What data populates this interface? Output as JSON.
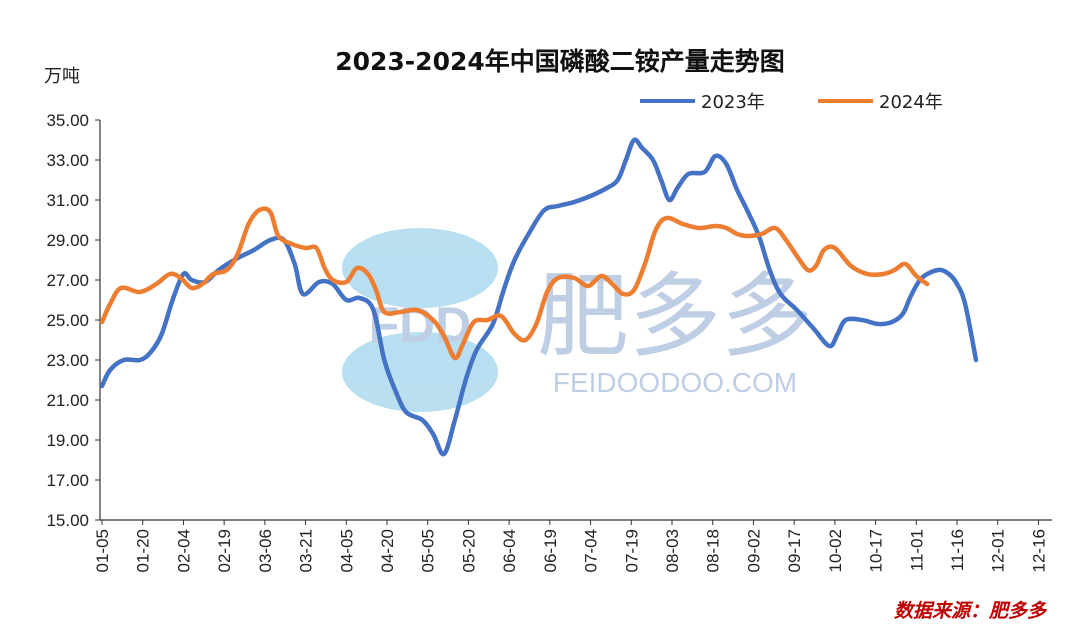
{
  "chart_data": {
    "type": "line",
    "title": "2023-2024年中国磷酸二铵产量走势图",
    "ylabel": "万吨",
    "ylim": [
      15,
      35
    ],
    "yticks": [
      "15.00",
      "17.00",
      "19.00",
      "21.00",
      "23.00",
      "25.00",
      "27.00",
      "29.00",
      "31.00",
      "33.00",
      "35.00"
    ],
    "xtick_labels": [
      "01-05",
      "01-20",
      "02-04",
      "02-19",
      "03-06",
      "03-21",
      "04-05",
      "04-20",
      "05-05",
      "05-20",
      "06-04",
      "06-19",
      "07-04",
      "07-19",
      "08-03",
      "08-18",
      "09-02",
      "09-17",
      "10-02",
      "10-17",
      "11-01",
      "11-16",
      "12-01",
      "12-16"
    ],
    "x_day_step": 15,
    "grid": false,
    "legend_position": "top-right",
    "series": [
      {
        "name": "2023年",
        "color": "#4472c4",
        "points": [
          [
            0,
            21.7
          ],
          [
            3,
            22.5
          ],
          [
            8,
            23.0
          ],
          [
            14,
            23.0
          ],
          [
            18,
            23.4
          ],
          [
            22,
            24.3
          ],
          [
            26,
            26.0
          ],
          [
            30,
            27.3
          ],
          [
            33,
            27.0
          ],
          [
            38,
            26.9
          ],
          [
            43,
            27.5
          ],
          [
            50,
            28.1
          ],
          [
            56,
            28.5
          ],
          [
            62,
            29.0
          ],
          [
            67,
            29.0
          ],
          [
            71,
            27.8
          ],
          [
            74,
            26.3
          ],
          [
            80,
            26.9
          ],
          [
            85,
            26.8
          ],
          [
            90,
            26.0
          ],
          [
            95,
            26.1
          ],
          [
            100,
            25.5
          ],
          [
            104,
            23.0
          ],
          [
            108,
            21.5
          ],
          [
            112,
            20.4
          ],
          [
            118,
            20.0
          ],
          [
            122,
            19.3
          ],
          [
            126,
            18.3
          ],
          [
            130,
            20.0
          ],
          [
            134,
            22.0
          ],
          [
            138,
            23.5
          ],
          [
            144,
            24.8
          ],
          [
            148,
            26.5
          ],
          [
            152,
            28.0
          ],
          [
            158,
            29.5
          ],
          [
            163,
            30.5
          ],
          [
            168,
            30.7
          ],
          [
            174,
            30.9
          ],
          [
            180,
            31.2
          ],
          [
            186,
            31.6
          ],
          [
            190,
            32.0
          ],
          [
            193,
            33.0
          ],
          [
            196,
            34.0
          ],
          [
            199,
            33.6
          ],
          [
            203,
            33.0
          ],
          [
            206,
            32.0
          ],
          [
            209,
            31.0
          ],
          [
            212,
            31.6
          ],
          [
            216,
            32.3
          ],
          [
            222,
            32.4
          ],
          [
            226,
            33.2
          ],
          [
            230,
            32.8
          ],
          [
            234,
            31.5
          ],
          [
            238,
            30.4
          ],
          [
            242,
            29.2
          ],
          [
            246,
            27.5
          ],
          [
            250,
            26.3
          ],
          [
            256,
            25.5
          ],
          [
            262,
            24.6
          ],
          [
            268,
            23.7
          ],
          [
            271,
            24.3
          ],
          [
            274,
            25.0
          ],
          [
            280,
            25.0
          ],
          [
            286,
            24.8
          ],
          [
            291,
            24.9
          ],
          [
            295,
            25.3
          ],
          [
            298,
            26.2
          ],
          [
            302,
            27.1
          ],
          [
            308,
            27.5
          ],
          [
            312,
            27.3
          ],
          [
            315,
            26.8
          ],
          [
            318,
            25.8
          ],
          [
            322,
            23.0
          ]
        ]
      },
      {
        "name": "2024年",
        "color": "#ed7d31",
        "points": [
          [
            0,
            24.9
          ],
          [
            3,
            25.8
          ],
          [
            7,
            26.6
          ],
          [
            14,
            26.4
          ],
          [
            20,
            26.8
          ],
          [
            25,
            27.3
          ],
          [
            29,
            27.1
          ],
          [
            33,
            26.6
          ],
          [
            37,
            26.8
          ],
          [
            41,
            27.3
          ],
          [
            46,
            27.5
          ],
          [
            50,
            28.3
          ],
          [
            54,
            29.8
          ],
          [
            58,
            30.5
          ],
          [
            62,
            30.4
          ],
          [
            65,
            29.2
          ],
          [
            70,
            28.8
          ],
          [
            75,
            28.6
          ],
          [
            79,
            28.6
          ],
          [
            82,
            27.6
          ],
          [
            85,
            27.0
          ],
          [
            90,
            26.9
          ],
          [
            94,
            27.6
          ],
          [
            98,
            27.3
          ],
          [
            101,
            26.5
          ],
          [
            104,
            25.4
          ],
          [
            110,
            25.4
          ],
          [
            116,
            25.5
          ],
          [
            122,
            25.0
          ],
          [
            126,
            24.2
          ],
          [
            130,
            23.1
          ],
          [
            133,
            23.8
          ],
          [
            137,
            24.9
          ],
          [
            142,
            25.0
          ],
          [
            147,
            25.2
          ],
          [
            152,
            24.3
          ],
          [
            156,
            24.0
          ],
          [
            160,
            24.8
          ],
          [
            164,
            26.4
          ],
          [
            168,
            27.1
          ],
          [
            174,
            27.1
          ],
          [
            179,
            26.7
          ],
          [
            184,
            27.2
          ],
          [
            188,
            26.8
          ],
          [
            192,
            26.3
          ],
          [
            196,
            26.5
          ],
          [
            200,
            27.8
          ],
          [
            204,
            29.5
          ],
          [
            208,
            30.1
          ],
          [
            214,
            29.8
          ],
          [
            220,
            29.6
          ],
          [
            226,
            29.7
          ],
          [
            230,
            29.6
          ],
          [
            234,
            29.3
          ],
          [
            238,
            29.2
          ],
          [
            243,
            29.3
          ],
          [
            248,
            29.6
          ],
          [
            252,
            29.0
          ],
          [
            256,
            28.2
          ],
          [
            260,
            27.5
          ],
          [
            263,
            27.7
          ],
          [
            266,
            28.5
          ],
          [
            270,
            28.6
          ],
          [
            276,
            27.7
          ],
          [
            282,
            27.3
          ],
          [
            288,
            27.3
          ],
          [
            292,
            27.5
          ],
          [
            296,
            27.8
          ],
          [
            300,
            27.2
          ],
          [
            304,
            26.8
          ]
        ]
      }
    ],
    "source": "数据来源：肥多多",
    "watermark": {
      "logo_letters": "FDD",
      "brand": "肥多多",
      "url": "FEIDOODOO.COM"
    }
  }
}
